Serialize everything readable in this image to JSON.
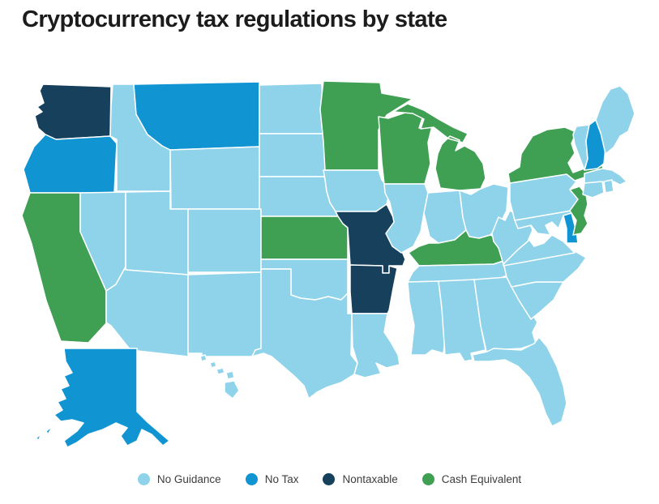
{
  "title": "Cryptocurrency tax regulations by state",
  "legend": {
    "items": [
      {
        "key": "no_guidance",
        "label": "No Guidance",
        "color": "#8ed3ea"
      },
      {
        "key": "no_tax",
        "label": "No Tax",
        "color": "#1094d2"
      },
      {
        "key": "nontaxable",
        "label": "Nontaxable",
        "color": "#16405c"
      },
      {
        "key": "cash_equivalent",
        "label": "Cash Equivalent",
        "color": "#3f9f53"
      }
    ]
  },
  "chart_data": {
    "type": "choropleth_map",
    "title": "Cryptocurrency tax regulations by state",
    "region": "United States (50 states)",
    "legend_position": "bottom",
    "categories": {
      "no_guidance": {
        "label": "No Guidance",
        "color": "#8ed3ea"
      },
      "no_tax": {
        "label": "No Tax",
        "color": "#1094d2"
      },
      "nontaxable": {
        "label": "Nontaxable",
        "color": "#16405c"
      },
      "cash_equivalent": {
        "label": "Cash Equivalent",
        "color": "#3f9f53"
      }
    },
    "states": {
      "AL": "no_guidance",
      "AK": "no_tax",
      "AZ": "no_guidance",
      "AR": "nontaxable",
      "CA": "cash_equivalent",
      "CO": "no_guidance",
      "CT": "no_guidance",
      "DE": "no_tax",
      "FL": "no_guidance",
      "GA": "no_guidance",
      "HI": "no_guidance",
      "ID": "no_guidance",
      "IL": "no_guidance",
      "IN": "no_guidance",
      "IA": "no_guidance",
      "KS": "cash_equivalent",
      "KY": "cash_equivalent",
      "LA": "no_guidance",
      "ME": "no_guidance",
      "MD": "no_guidance",
      "MA": "no_guidance",
      "MI": "cash_equivalent",
      "MN": "cash_equivalent",
      "MS": "no_guidance",
      "MO": "nontaxable",
      "MT": "no_tax",
      "NE": "no_guidance",
      "NV": "no_guidance",
      "NH": "no_tax",
      "NJ": "cash_equivalent",
      "NM": "no_guidance",
      "NY": "cash_equivalent",
      "NC": "no_guidance",
      "ND": "no_guidance",
      "OH": "no_guidance",
      "OK": "no_guidance",
      "OR": "no_tax",
      "PA": "no_guidance",
      "RI": "no_guidance",
      "SC": "no_guidance",
      "SD": "no_guidance",
      "TN": "no_guidance",
      "TX": "no_guidance",
      "UT": "no_guidance",
      "VT": "no_guidance",
      "VA": "no_guidance",
      "WA": "nontaxable",
      "WV": "no_guidance",
      "WI": "cash_equivalent",
      "WY": "no_guidance"
    }
  }
}
